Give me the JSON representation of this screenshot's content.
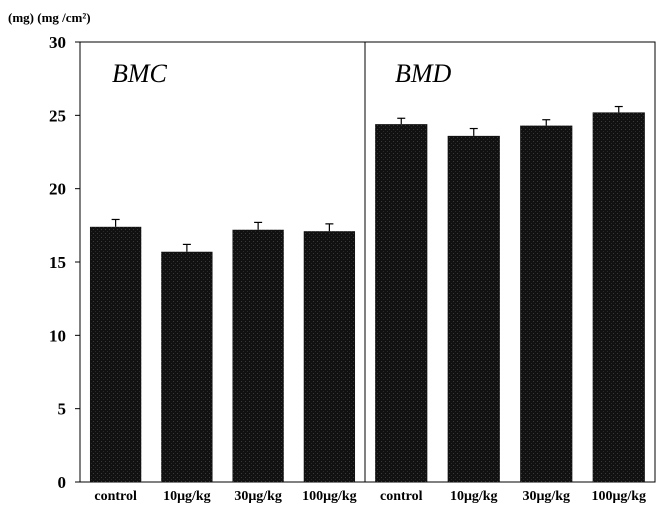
{
  "chart_data": {
    "type": "bar",
    "yunit_label": "(mg) (mg /cm²)",
    "ylim": [
      0,
      30
    ],
    "yticks": [
      0,
      5,
      10,
      15,
      20,
      25,
      30
    ],
    "grid": false,
    "colors": {
      "bar": "#111111",
      "axis": "#000000",
      "error_bar": "#000000"
    },
    "panels": [
      {
        "title": "BMC",
        "categories": [
          "control",
          "10μg/kg",
          "30μg/kg",
          "100μg/kg"
        ],
        "values": [
          17.4,
          15.7,
          17.2,
          17.1
        ],
        "errors": [
          0.5,
          0.5,
          0.5,
          0.5
        ]
      },
      {
        "title": "BMD",
        "categories": [
          "control",
          "10μg/kg",
          "30μg/kg",
          "100μg/kg"
        ],
        "values": [
          24.4,
          23.6,
          24.3,
          25.2
        ],
        "errors": [
          0.4,
          0.5,
          0.4,
          0.4
        ]
      }
    ]
  }
}
